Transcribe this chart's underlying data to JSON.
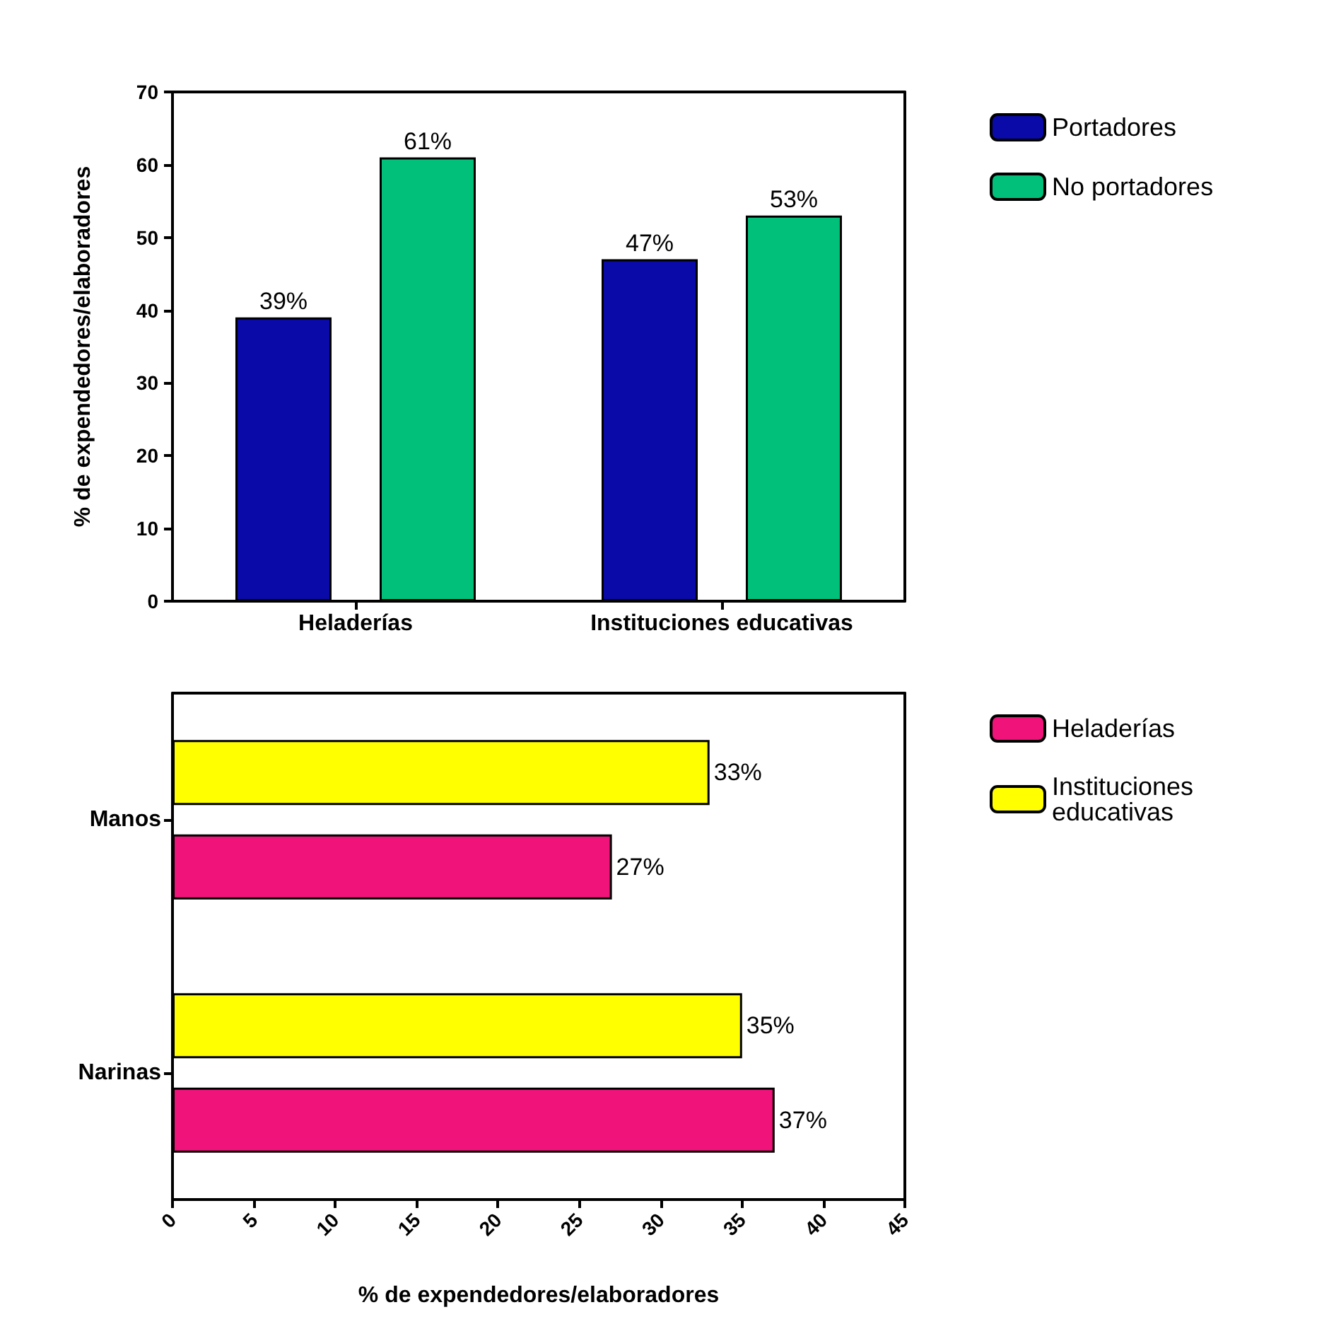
{
  "chart_data": [
    {
      "type": "bar",
      "ylabel": "% de expendedores/elaboradores",
      "categories": [
        "Heladerías",
        "Instituciones educativas"
      ],
      "series": [
        {
          "name": "Portadores",
          "color": "#0a0aa8",
          "values": [
            39,
            47
          ],
          "value_labels": [
            "39%",
            "47%"
          ]
        },
        {
          "name": "No portadores",
          "color": "#00c07a",
          "values": [
            61,
            53
          ],
          "value_labels": [
            "61%",
            "53%"
          ]
        }
      ],
      "ylim": [
        0,
        70
      ],
      "yticks": [
        0,
        10,
        20,
        30,
        40,
        50,
        60,
        70
      ],
      "grid": false,
      "legend": "right"
    },
    {
      "type": "bar",
      "orientation": "horizontal",
      "xlabel": "% de expendedores/elaboradores",
      "categories": [
        "Manos",
        "Narinas"
      ],
      "series": [
        {
          "name": "Heladerías",
          "color": "#f0147a",
          "values": [
            27,
            37
          ],
          "value_labels": [
            "27%",
            "37%"
          ]
        },
        {
          "name": "Instituciones educativas",
          "color": "#ffff00",
          "values": [
            33,
            35
          ],
          "value_labels": [
            "33%",
            "35%"
          ]
        }
      ],
      "xlim": [
        0,
        45
      ],
      "xticks": [
        0,
        5,
        10,
        15,
        20,
        25,
        30,
        35,
        40,
        45
      ],
      "grid": false,
      "legend": "right"
    }
  ]
}
